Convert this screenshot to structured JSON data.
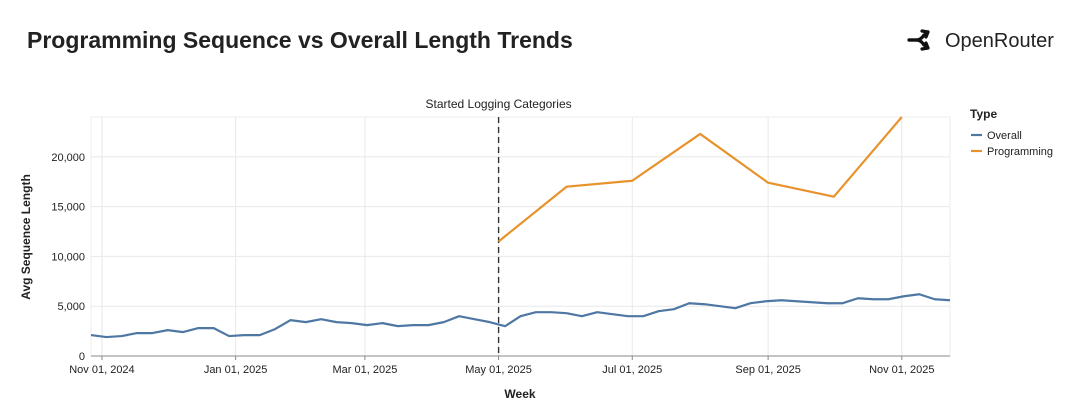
{
  "brand": "OpenRouter",
  "chart_data": {
    "type": "line",
    "title": "Programming Sequence vs Overall Length Trends",
    "xlabel": "Week",
    "ylabel": "Avg Sequence Length",
    "legend_title": "Type",
    "legend": "right",
    "grid": true,
    "xlim": [
      "2024-10-27",
      "2025-11-23"
    ],
    "xticks": [
      {
        "value": "2024-11-01",
        "label": "Nov 01, 2024"
      },
      {
        "value": "2025-01-01",
        "label": "Jan 01, 2025"
      },
      {
        "value": "2025-03-01",
        "label": "Mar 01, 2025"
      },
      {
        "value": "2025-05-01",
        "label": "May 01, 2025"
      },
      {
        "value": "2025-07-01",
        "label": "Jul 01, 2025"
      },
      {
        "value": "2025-09-01",
        "label": "Sep 01, 2025"
      },
      {
        "value": "2025-11-01",
        "label": "Nov 01, 2025"
      }
    ],
    "ylim": [
      0,
      24000
    ],
    "yticks": [
      0,
      {
        "value": 5000,
        "label": "5,000"
      },
      {
        "value": 10000,
        "label": "10,000"
      },
      {
        "value": 15000,
        "label": "15,000"
      },
      {
        "value": 20000,
        "label": "20,000"
      }
    ],
    "annotation": {
      "x": "2025-05-01",
      "label": "Started Logging Categories"
    },
    "series": [
      {
        "name": "Overall",
        "color": "#4f77a3",
        "x": [
          "2024-10-27",
          "2024-11-03",
          "2024-11-10",
          "2024-11-17",
          "2024-11-24",
          "2024-12-01",
          "2024-12-08",
          "2024-12-15",
          "2024-12-22",
          "2024-12-29",
          "2025-01-05",
          "2025-01-12",
          "2025-01-19",
          "2025-01-26",
          "2025-02-02",
          "2025-02-09",
          "2025-02-16",
          "2025-02-23",
          "2025-03-02",
          "2025-03-09",
          "2025-03-16",
          "2025-03-23",
          "2025-03-30",
          "2025-04-06",
          "2025-04-13",
          "2025-04-20",
          "2025-04-27",
          "2025-05-04",
          "2025-05-11",
          "2025-05-18",
          "2025-05-25",
          "2025-06-01",
          "2025-06-08",
          "2025-06-15",
          "2025-06-22",
          "2025-06-29",
          "2025-07-06",
          "2025-07-13",
          "2025-07-20",
          "2025-07-27",
          "2025-08-03",
          "2025-08-10",
          "2025-08-17",
          "2025-08-24",
          "2025-08-31",
          "2025-09-07",
          "2025-09-14",
          "2025-09-21",
          "2025-09-28",
          "2025-10-05",
          "2025-10-12",
          "2025-10-19",
          "2025-10-26",
          "2025-11-02",
          "2025-11-09",
          "2025-11-16",
          "2025-11-23"
        ],
        "values": [
          2100,
          1900,
          2000,
          2300,
          2300,
          2600,
          2400,
          2800,
          2800,
          2000,
          2100,
          2100,
          2700,
          3600,
          3400,
          3700,
          3400,
          3300,
          3100,
          3300,
          3000,
          3100,
          3100,
          3400,
          4000,
          3700,
          3400,
          3000,
          4000,
          4400,
          4400,
          4300,
          4000,
          4400,
          4200,
          4000,
          4000,
          4500,
          4700,
          5300,
          5200,
          5000,
          4800,
          5300,
          5500,
          5600,
          5500,
          5400,
          5300,
          5300,
          5800,
          5700,
          5700,
          6000,
          6200,
          5700,
          5600
        ]
      },
      {
        "name": "Programming",
        "color": "#e8922b",
        "x": [
          "2025-05-01",
          "2025-06-01",
          "2025-07-01",
          "2025-08-01",
          "2025-09-01",
          "2025-10-01",
          "2025-11-01"
        ],
        "values": [
          11500,
          17000,
          17600,
          22300,
          17400,
          16000,
          24000
        ]
      }
    ]
  }
}
